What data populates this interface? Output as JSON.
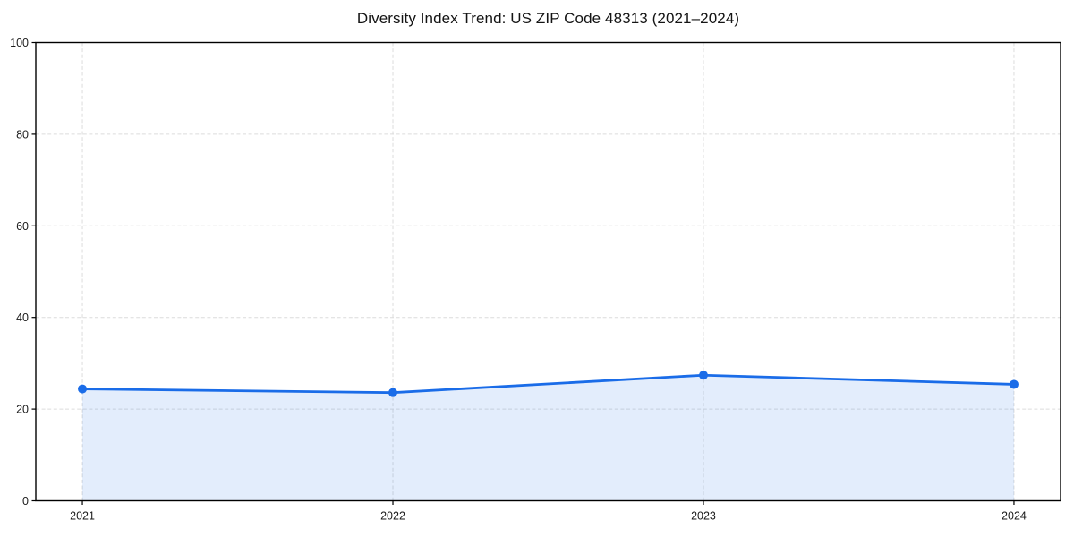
{
  "title": "Diversity Index Trend: US ZIP Code 48313 (2021–2024)",
  "chart_data": {
    "type": "area",
    "title": "Diversity Index Trend: US ZIP Code 48313 (2021–2024)",
    "categories": [
      "2021",
      "2022",
      "2023",
      "2024"
    ],
    "series": [
      {
        "name": "Diversity Index",
        "values": [
          24.4,
          23.6,
          27.4,
          25.4
        ]
      }
    ],
    "xlabel": "",
    "ylabel": "",
    "ylim": [
      0,
      100
    ],
    "yticks": [
      0,
      20,
      40,
      60,
      80,
      100
    ],
    "grid": "dashed",
    "legend_position": "none",
    "colors": {
      "line": "#1a6ce8",
      "marker": "#1a6ce8",
      "fill": "#1a6ce8",
      "fill_opacity": 0.12,
      "gridline": "#dcdcdc",
      "frame": "#000000",
      "text": "#1a1a1a",
      "background": "#ffffff"
    },
    "marker": "circle",
    "line_width": 2.8,
    "marker_radius": 5
  }
}
